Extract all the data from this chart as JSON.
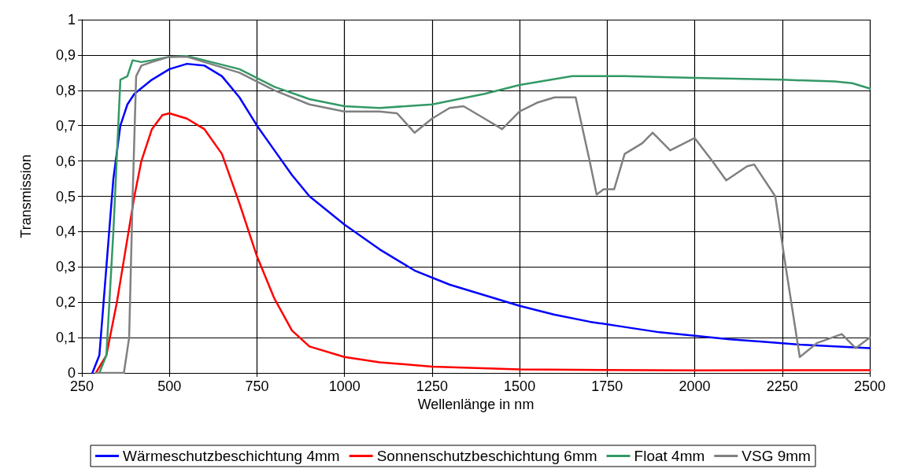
{
  "chart_data": {
    "type": "line",
    "xlabel": "Wellenlänge in nm",
    "ylabel": "Transmission",
    "xlim": [
      250,
      2500
    ],
    "xticks": [
      250,
      500,
      750,
      1000,
      1250,
      1500,
      1750,
      2000,
      2250,
      2500
    ],
    "ylim": [
      0,
      1
    ],
    "yticks": [
      {
        "value": 0,
        "label": "0"
      },
      {
        "value": 0.1,
        "label": "0,1"
      },
      {
        "value": 0.2,
        "label": "0,2"
      },
      {
        "value": 0.3,
        "label": "0,3"
      },
      {
        "value": 0.4,
        "label": "0,4"
      },
      {
        "value": 0.5,
        "label": "0,5"
      },
      {
        "value": 0.6,
        "label": "0,6"
      },
      {
        "value": 0.7,
        "label": "0,7"
      },
      {
        "value": 0.8,
        "label": "0,8"
      },
      {
        "value": 0.9,
        "label": "0,9"
      },
      {
        "value": 1,
        "label": "1"
      }
    ],
    "grid": true,
    "legend": "bottom",
    "marker": "none",
    "line_style": "solid",
    "series": [
      {
        "name": "Wärmeschutzbeschichtung 4mm",
        "color": "#0000ff",
        "x": [
          280,
          300,
          320,
          340,
          360,
          380,
          400,
          450,
          500,
          550,
          600,
          650,
          700,
          750,
          800,
          850,
          900,
          1000,
          1100,
          1200,
          1300,
          1400,
          1500,
          1600,
          1700,
          1800,
          1900,
          2000,
          2100,
          2200,
          2300,
          2400,
          2500
        ],
        "values": [
          0,
          0.05,
          0.3,
          0.55,
          0.7,
          0.76,
          0.79,
          0.83,
          0.86,
          0.875,
          0.87,
          0.84,
          0.78,
          0.7,
          0.63,
          0.56,
          0.5,
          0.42,
          0.35,
          0.29,
          0.25,
          0.22,
          0.19,
          0.165,
          0.145,
          0.13,
          0.115,
          0.105,
          0.095,
          0.088,
          0.08,
          0.075,
          0.07
        ]
      },
      {
        "name": "Sonnenschutzbeschichtung 6mm",
        "color": "#ff0000",
        "x": [
          290,
          320,
          350,
          380,
          400,
          420,
          450,
          480,
          500,
          550,
          600,
          650,
          700,
          750,
          800,
          850,
          900,
          1000,
          1100,
          1250,
          1500,
          2000,
          2500
        ],
        "values": [
          0,
          0.05,
          0.2,
          0.38,
          0.5,
          0.6,
          0.69,
          0.73,
          0.735,
          0.72,
          0.69,
          0.62,
          0.48,
          0.33,
          0.21,
          0.12,
          0.075,
          0.045,
          0.03,
          0.018,
          0.01,
          0.007,
          0.008
        ]
      },
      {
        "name": "Float 4mm",
        "color": "#339966",
        "x": [
          300,
          320,
          340,
          360,
          380,
          395,
          420,
          450,
          500,
          550,
          600,
          700,
          800,
          900,
          1000,
          1100,
          1250,
          1400,
          1500,
          1650,
          1800,
          2000,
          2250,
          2400,
          2450,
          2500
        ],
        "values": [
          0,
          0.05,
          0.4,
          0.83,
          0.84,
          0.885,
          0.88,
          0.885,
          0.895,
          0.897,
          0.885,
          0.86,
          0.81,
          0.775,
          0.755,
          0.75,
          0.76,
          0.79,
          0.815,
          0.84,
          0.84,
          0.835,
          0.83,
          0.825,
          0.82,
          0.805
        ]
      },
      {
        "name": "VSG 9mm",
        "color": "#808080",
        "x": [
          290,
          370,
          385,
          395,
          405,
          420,
          450,
          500,
          550,
          600,
          700,
          800,
          900,
          1000,
          1100,
          1150,
          1200,
          1250,
          1300,
          1340,
          1400,
          1450,
          1500,
          1550,
          1600,
          1660,
          1700,
          1720,
          1740,
          1770,
          1800,
          1850,
          1880,
          1930,
          2000,
          2050,
          2090,
          2150,
          2170,
          2230,
          2260,
          2300,
          2350,
          2420,
          2460,
          2500
        ],
        "values": [
          0,
          0,
          0.1,
          0.5,
          0.84,
          0.87,
          0.88,
          0.895,
          0.895,
          0.88,
          0.85,
          0.8,
          0.76,
          0.74,
          0.74,
          0.735,
          0.68,
          0.72,
          0.75,
          0.755,
          0.72,
          0.69,
          0.74,
          0.765,
          0.78,
          0.78,
          0.6,
          0.505,
          0.52,
          0.52,
          0.62,
          0.65,
          0.68,
          0.63,
          0.665,
          0.6,
          0.545,
          0.585,
          0.59,
          0.5,
          0.3,
          0.045,
          0.085,
          0.11,
          0.07,
          0.1
        ]
      }
    ]
  }
}
